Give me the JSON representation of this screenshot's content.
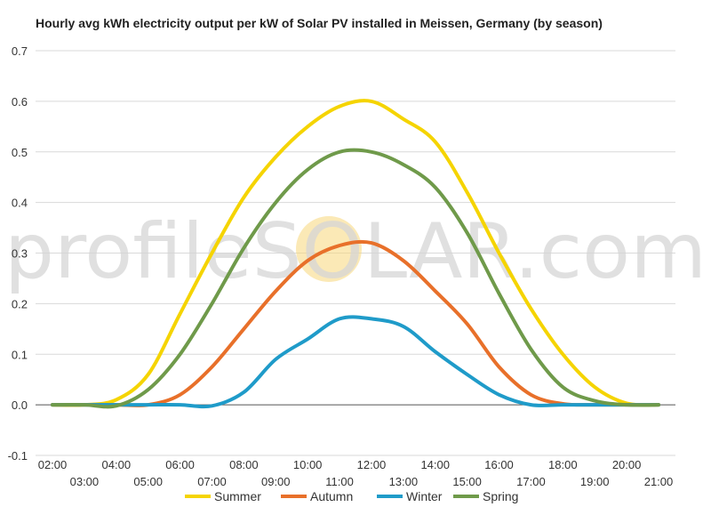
{
  "chart_data": {
    "type": "line",
    "title": "Hourly avg kWh electricity output per kW of Solar PV installed in Meissen, Germany (by season)",
    "xlabel": "",
    "ylabel": "",
    "ylim": [
      -0.1,
      0.7
    ],
    "yticks": [
      "0.7",
      "0.6",
      "0.5",
      "0.4",
      "0.3",
      "0.2",
      "0.1",
      "0.0",
      "-0.1"
    ],
    "categories": [
      "02:00",
      "03:00",
      "04:00",
      "05:00",
      "06:00",
      "07:00",
      "08:00",
      "09:00",
      "10:00",
      "11:00",
      "12:00",
      "13:00",
      "14:00",
      "15:00",
      "16:00",
      "17:00",
      "18:00",
      "19:00",
      "20:00",
      "21:00"
    ],
    "grid": true,
    "legend_position": "bottom",
    "series": [
      {
        "name": "Summer",
        "color": "#f5d400",
        "values": [
          0,
          0,
          0.01,
          0.06,
          0.18,
          0.3,
          0.41,
          0.49,
          0.55,
          0.59,
          0.6,
          0.565,
          0.52,
          0.42,
          0.3,
          0.19,
          0.1,
          0.035,
          0.003,
          0
        ]
      },
      {
        "name": "Autumn",
        "color": "#e8702a",
        "values": [
          0,
          0,
          0,
          0,
          0.02,
          0.075,
          0.15,
          0.225,
          0.285,
          0.315,
          0.32,
          0.285,
          0.225,
          0.16,
          0.075,
          0.02,
          0.002,
          0,
          0,
          0
        ]
      },
      {
        "name": "Winter",
        "color": "#1f9bc9",
        "values": [
          0,
          0,
          0,
          0,
          0,
          -0.002,
          0.025,
          0.09,
          0.13,
          0.17,
          0.17,
          0.155,
          0.105,
          0.06,
          0.02,
          0,
          0,
          0,
          0,
          0
        ]
      },
      {
        "name": "Spring",
        "color": "#6f9a4a",
        "values": [
          0,
          0,
          -0.002,
          0.03,
          0.1,
          0.2,
          0.31,
          0.4,
          0.465,
          0.5,
          0.5,
          0.475,
          0.43,
          0.34,
          0.22,
          0.11,
          0.035,
          0.008,
          0,
          0
        ]
      }
    ]
  },
  "watermark": {
    "text": "profileSOLAR.com",
    "sun_color": "#f7d77a"
  }
}
